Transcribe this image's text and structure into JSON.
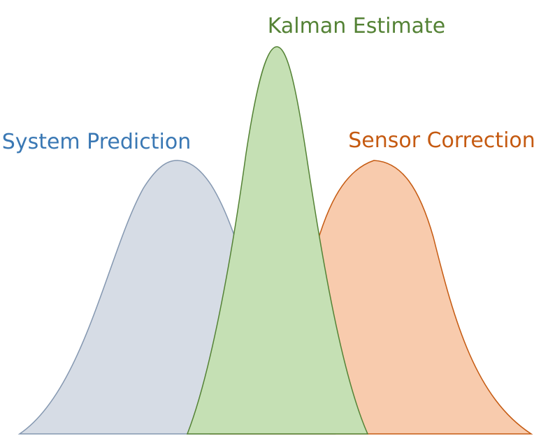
{
  "labels": {
    "system_prediction": "System Prediction",
    "kalman_estimate": "Kalman Estimate",
    "sensor_correction": "Sensor Correction"
  },
  "colors": {
    "system_prediction_text": "#3A78B4",
    "system_prediction_stroke": "#8497B0",
    "system_prediction_fill": "#D6DCE5",
    "kalman_estimate_text": "#548235",
    "kalman_estimate_stroke": "#548235",
    "kalman_estimate_fill": "#C5E0B4",
    "sensor_correction_text": "#C55A11",
    "sensor_correction_stroke": "#C55A11",
    "sensor_correction_fill": "#F8CBAD"
  }
}
